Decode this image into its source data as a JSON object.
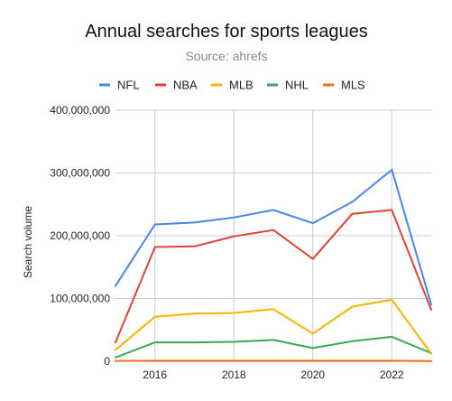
{
  "chart_data": {
    "type": "line",
    "title": "Annual searches for sports leagues",
    "subtitle": "Source: ahrefs",
    "xlabel": "",
    "ylabel": "Search volume",
    "x": [
      2015,
      2016,
      2017,
      2018,
      2019,
      2020,
      2021,
      2022,
      2023
    ],
    "x_ticks": [
      "2016",
      "2018",
      "2020",
      "2022"
    ],
    "x_tick_values": [
      2016,
      2018,
      2020,
      2022
    ],
    "y_ticks": [
      "0",
      "100,000,000",
      "200,000,000",
      "300,000,000",
      "400,000,000"
    ],
    "y_tick_values": [
      0,
      100000000,
      200000000,
      300000000,
      400000000
    ],
    "ylim": [
      0,
      400000000
    ],
    "xlim": [
      2015,
      2023
    ],
    "grid": true,
    "legend_position": "top",
    "series": [
      {
        "name": "NFL",
        "color": "#4a86e8",
        "values": [
          120000000,
          218000000,
          221000000,
          229000000,
          241000000,
          220000000,
          254000000,
          305000000,
          90000000
        ]
      },
      {
        "name": "NBA",
        "color": "#db4437",
        "values": [
          30000000,
          182000000,
          183000000,
          199000000,
          209000000,
          163000000,
          235000000,
          241000000,
          82000000
        ]
      },
      {
        "name": "MLB",
        "color": "#f4b400",
        "values": [
          18000000,
          71000000,
          76000000,
          77000000,
          83000000,
          44000000,
          87000000,
          98000000,
          12000000
        ]
      },
      {
        "name": "NHL",
        "color": "#3aa757",
        "values": [
          6000000,
          30000000,
          30000000,
          31000000,
          34000000,
          21000000,
          32000000,
          39000000,
          13000000
        ]
      },
      {
        "name": "MLS",
        "color": "#f46d1e",
        "values": [
          600000,
          800000,
          900000,
          900000,
          900000,
          800000,
          900000,
          900000,
          300000
        ]
      }
    ]
  }
}
